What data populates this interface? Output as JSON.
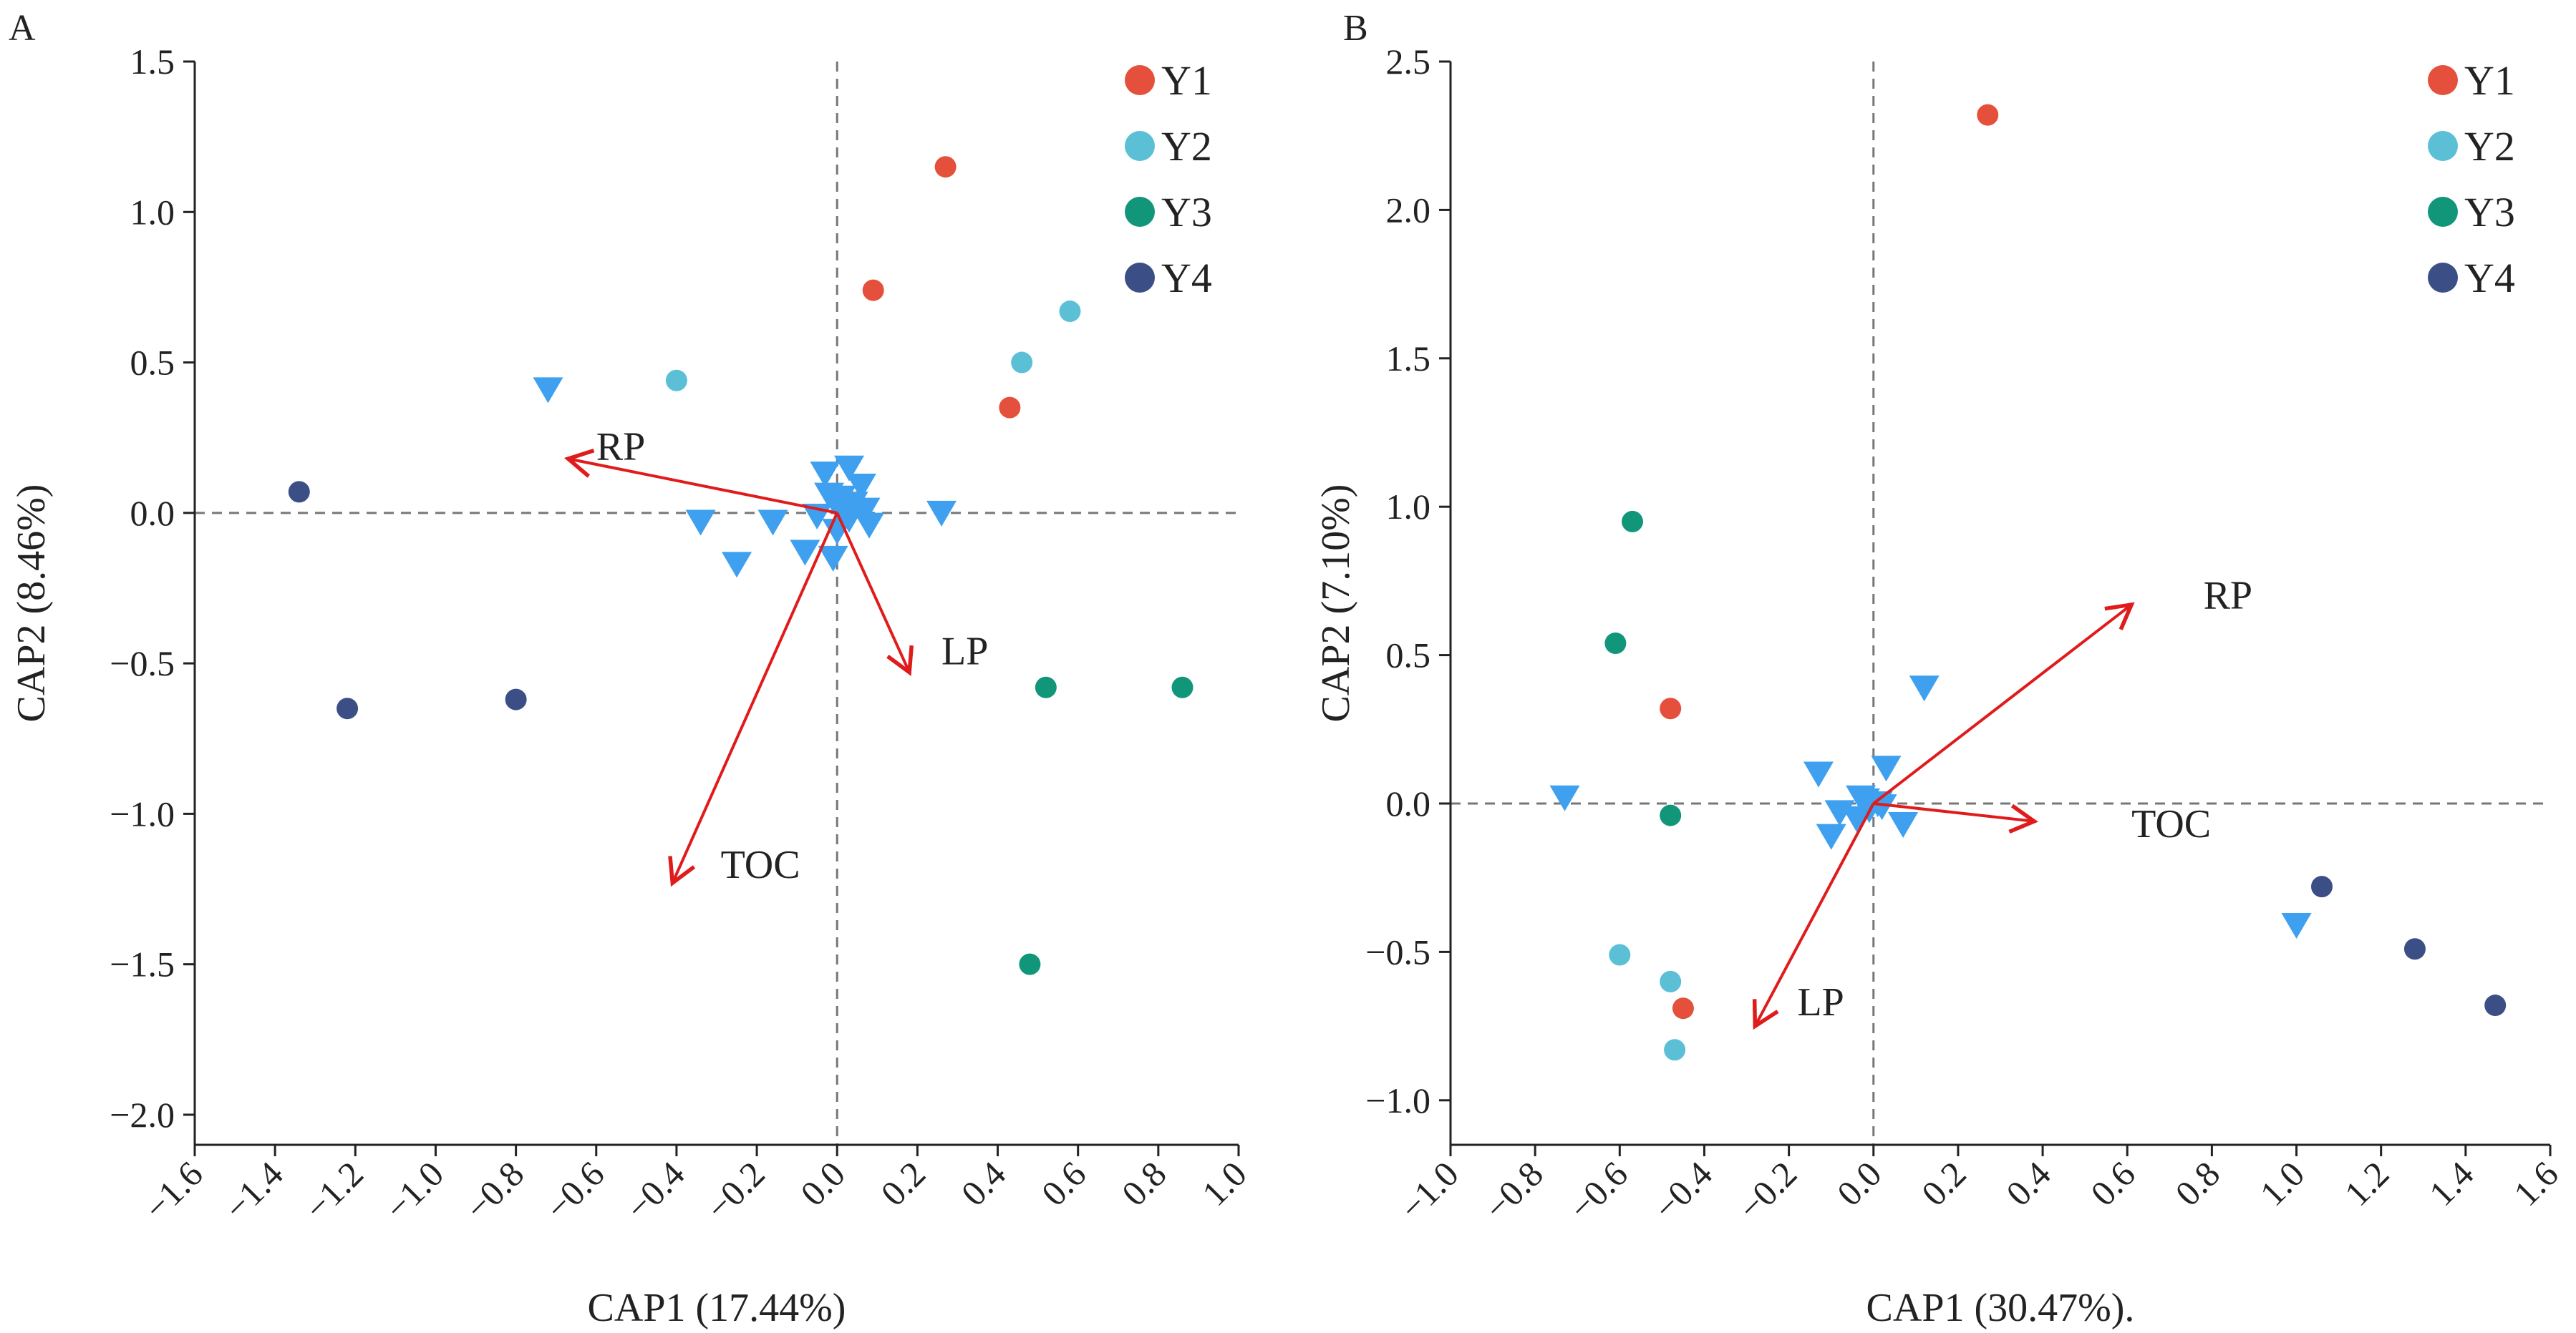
{
  "colors": {
    "Y1": "#e4503b",
    "Y2": "#5bbfd6",
    "Y3": "#12967a",
    "Y4": "#3b4f86",
    "species": "#3ea0ee",
    "vector": "#e01b1b"
  },
  "chart_data": [
    {
      "type": "scatter",
      "panel_label": "A",
      "xlabel": "CAP1 (17.44%)",
      "ylabel": "CAP2 (8.46%)",
      "xlim": [
        -1.6,
        1.0
      ],
      "ylim": [
        -2.1,
        1.5
      ],
      "xticks": [
        -1.6,
        -1.4,
        -1.2,
        -1.0,
        -0.8,
        -0.6,
        -0.4,
        -0.2,
        0.0,
        0.2,
        0.4,
        0.6,
        0.8,
        1.0
      ],
      "xtick_labels": [
        "−1.6",
        "−1.4",
        "−1.2",
        "−1.0",
        "−0.8",
        "−0.6",
        "−0.4",
        "−0.2",
        "0.0",
        "0.2",
        "0.4",
        "0.6",
        "0.8",
        "1.0"
      ],
      "yticks": [
        -2.0,
        -1.5,
        -1.0,
        -0.5,
        0.0,
        0.5,
        1.0,
        1.5
      ],
      "ytick_labels": [
        "−2.0",
        "−1.5",
        "−1.0",
        "−0.5",
        "0.0",
        "0.5",
        "1.0",
        "1.5"
      ],
      "grid": false,
      "legend_position": "top-right",
      "legend": [
        "Y1",
        "Y2",
        "Y3",
        "Y4"
      ],
      "series": [
        {
          "name": "Y1",
          "points": [
            [
              0.27,
              1.15
            ],
            [
              0.09,
              0.74
            ],
            [
              0.43,
              0.35
            ]
          ]
        },
        {
          "name": "Y2",
          "points": [
            [
              -0.4,
              0.44
            ],
            [
              0.58,
              0.67
            ],
            [
              0.46,
              0.5
            ]
          ]
        },
        {
          "name": "Y3",
          "points": [
            [
              0.52,
              -0.58
            ],
            [
              0.86,
              -0.58
            ],
            [
              0.48,
              -1.5
            ]
          ]
        },
        {
          "name": "Y4",
          "points": [
            [
              -1.34,
              0.07
            ],
            [
              -1.22,
              -0.65
            ],
            [
              -0.8,
              -0.62
            ]
          ]
        }
      ],
      "species_points": [
        [
          -0.72,
          0.41
        ],
        [
          -0.34,
          -0.03
        ],
        [
          -0.25,
          -0.17
        ],
        [
          -0.16,
          -0.03
        ],
        [
          -0.08,
          -0.13
        ],
        [
          -0.03,
          0.13
        ],
        [
          0.03,
          0.15
        ],
        [
          -0.05,
          -0.01
        ],
        [
          -0.02,
          0.06
        ],
        [
          0.01,
          0.0
        ],
        [
          0.04,
          0.03
        ],
        [
          0.06,
          0.09
        ],
        [
          0.07,
          0.01
        ],
        [
          0.03,
          -0.02
        ],
        [
          0.0,
          -0.06
        ],
        [
          -0.01,
          -0.15
        ],
        [
          0.01,
          0.05
        ],
        [
          0.26,
          0.0
        ],
        [
          0.08,
          -0.04
        ],
        [
          0.02,
          0.02
        ]
      ],
      "vectors": [
        {
          "label": "RP",
          "x": -0.67,
          "y": 0.18
        },
        {
          "label": "LP",
          "x": 0.18,
          "y": -0.53
        },
        {
          "label": "TOC",
          "x": -0.41,
          "y": -1.23
        }
      ]
    },
    {
      "type": "scatter",
      "panel_label": "B",
      "xlabel": "CAP1 (30.47%).",
      "ylabel": "CAP2 (7.10%)",
      "xlim": [
        -1.0,
        1.6
      ],
      "ylim": [
        -1.15,
        2.5
      ],
      "xticks": [
        -1.0,
        -0.8,
        -0.6,
        -0.4,
        -0.2,
        0.0,
        0.2,
        0.4,
        0.6,
        0.8,
        1.0,
        1.2,
        1.4,
        1.6
      ],
      "xtick_labels": [
        "−1.0",
        "−0.8",
        "−0.6",
        "−0.4",
        "−0.2",
        "0.0",
        "0.2",
        "0.4",
        "0.6",
        "0.8",
        "1.0",
        "1.2",
        "1.4",
        "1.6"
      ],
      "yticks": [
        -1.0,
        -0.5,
        0.0,
        0.5,
        1.0,
        1.5,
        2.0,
        2.5
      ],
      "ytick_labels": [
        "−1.0",
        "−0.5",
        "0.0",
        "0.5",
        "1.0",
        "1.5",
        "2.0",
        "2.5"
      ],
      "grid": false,
      "legend_position": "top-right",
      "legend": [
        "Y1",
        "Y2",
        "Y3",
        "Y4"
      ],
      "series": [
        {
          "name": "Y1",
          "points": [
            [
              0.27,
              2.32
            ],
            [
              -0.48,
              0.32
            ],
            [
              -0.45,
              -0.69
            ]
          ]
        },
        {
          "name": "Y2",
          "points": [
            [
              -0.6,
              -0.51
            ],
            [
              -0.48,
              -0.6
            ],
            [
              -0.47,
              -0.83
            ]
          ]
        },
        {
          "name": "Y3",
          "points": [
            [
              -0.57,
              0.95
            ],
            [
              -0.61,
              0.54
            ],
            [
              -0.48,
              -0.04
            ]
          ]
        },
        {
          "name": "Y4",
          "points": [
            [
              1.06,
              -0.28
            ],
            [
              1.28,
              -0.49
            ],
            [
              1.47,
              -0.68
            ]
          ]
        }
      ],
      "species_points": [
        [
          -0.73,
          0.02
        ],
        [
          -0.13,
          0.1
        ],
        [
          -0.1,
          -0.11
        ],
        [
          0.12,
          0.39
        ],
        [
          0.03,
          0.12
        ],
        [
          -0.08,
          -0.03
        ],
        [
          -0.03,
          0.02
        ],
        [
          -0.01,
          -0.02
        ],
        [
          0.02,
          -0.01
        ],
        [
          0.07,
          -0.07
        ],
        [
          -0.04,
          -0.05
        ],
        [
          0.01,
          0.0
        ],
        [
          1.0,
          -0.41
        ],
        [
          -0.02,
          0.01
        ]
      ],
      "vectors": [
        {
          "label": "RP",
          "x": 0.61,
          "y": 0.67
        },
        {
          "label": "TOC",
          "x": 0.38,
          "y": -0.06
        },
        {
          "label": "LP",
          "x": -0.28,
          "y": -0.75
        }
      ]
    }
  ]
}
